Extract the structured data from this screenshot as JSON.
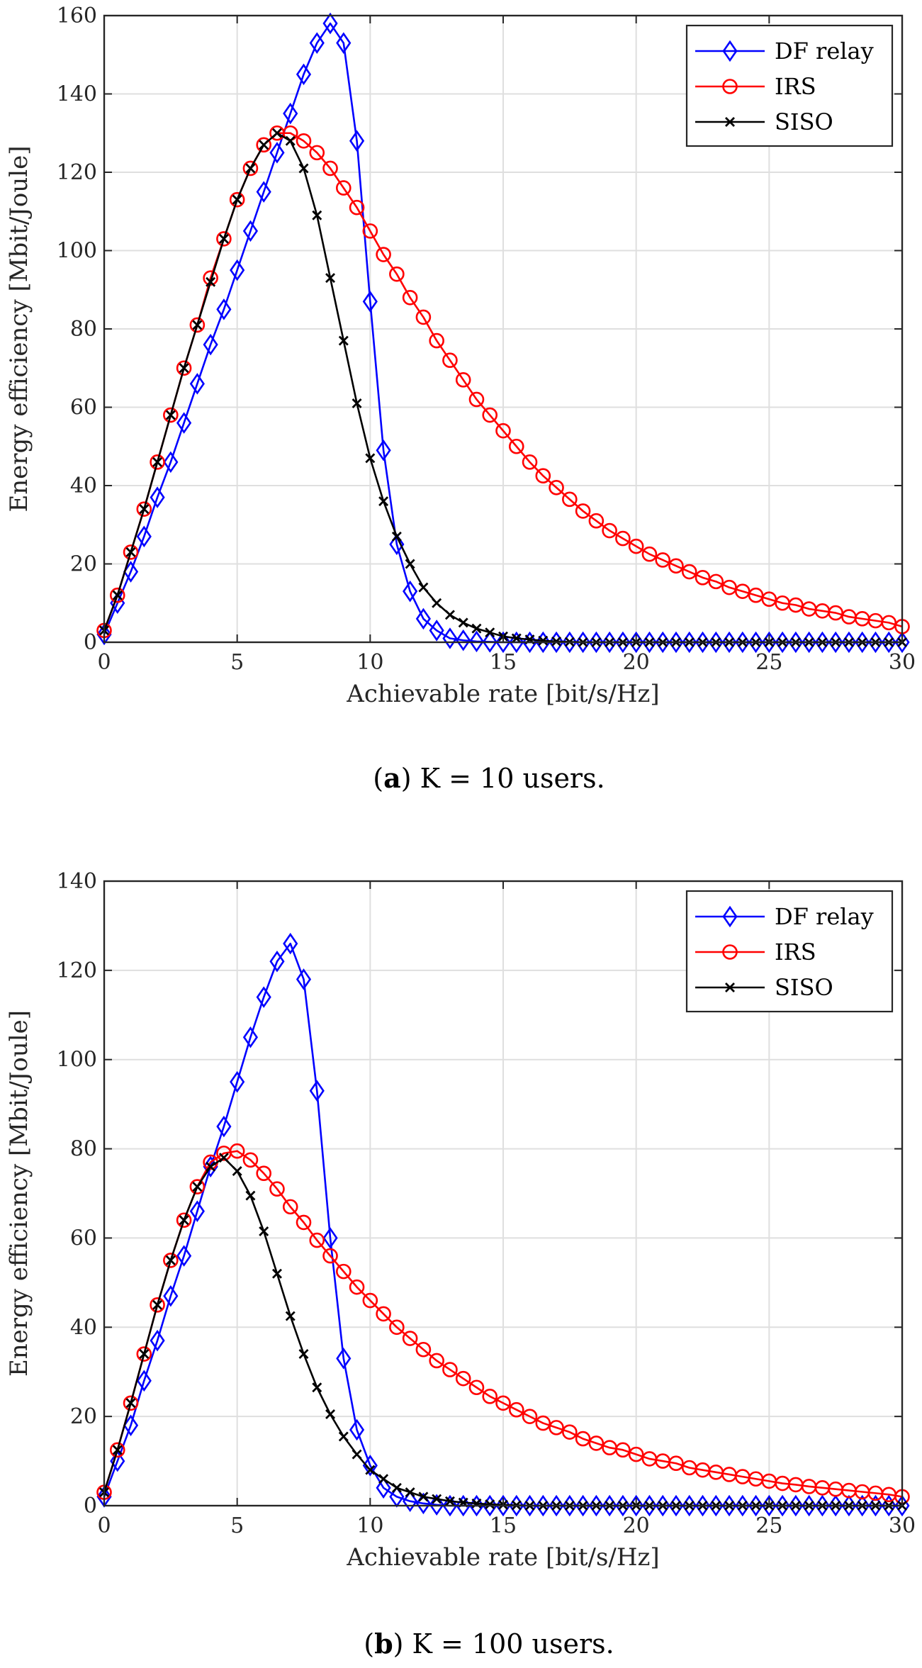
{
  "chart_data": [
    {
      "type": "line",
      "panel": "a",
      "caption": {
        "label": "a",
        "text": " K = 10 users."
      },
      "xlabel": "Achievable rate [bit/s/Hz]",
      "ylabel": "Energy efficiency [Mbit/Joule]",
      "xlim": [
        0,
        30
      ],
      "ylim": [
        0,
        160
      ],
      "xticks": [
        0,
        5,
        10,
        15,
        20,
        25,
        30
      ],
      "yticks": [
        0,
        20,
        40,
        60,
        80,
        100,
        120,
        140,
        160
      ],
      "grid": true,
      "legend_position": "top-right",
      "legend": [
        "DF relay",
        "IRS",
        "SISO"
      ],
      "colors": {
        "DF relay": "#0000ff",
        "IRS": "#ff0000",
        "SISO": "#000000"
      },
      "series": [
        {
          "name": "DF relay",
          "marker": "diamond",
          "x": [
            0,
            0.5,
            1,
            1.5,
            2,
            2.5,
            3,
            3.5,
            4,
            4.5,
            5,
            5.5,
            6,
            6.5,
            7,
            7.5,
            8,
            8.5,
            9,
            9.5,
            10,
            10.5,
            11,
            11.5,
            12,
            12.5,
            13,
            13.5,
            14,
            14.5,
            15,
            15.5,
            16,
            16.5,
            17,
            17.5,
            18,
            18.5,
            19,
            19.5,
            20,
            20.5,
            21,
            21.5,
            22,
            22.5,
            23,
            23.5,
            24,
            24.5,
            25,
            25.5,
            26,
            26.5,
            27,
            27.5,
            28,
            28.5,
            29,
            29.5,
            30
          ],
          "values": [
            2,
            10,
            18,
            27,
            37,
            46,
            56,
            66,
            76,
            85,
            95,
            105,
            115,
            125,
            135,
            145,
            153,
            158,
            153,
            128,
            87,
            49,
            25,
            13,
            6,
            3,
            1,
            0.5,
            0.2,
            0.1,
            0,
            0,
            0,
            0,
            0,
            0,
            0,
            0,
            0,
            0,
            0,
            0,
            0,
            0,
            0,
            0,
            0,
            0,
            0,
            0,
            0,
            0,
            0,
            0,
            0,
            0,
            0,
            0,
            0,
            0,
            0
          ]
        },
        {
          "name": "IRS",
          "marker": "circle",
          "x": [
            0,
            0.5,
            1,
            1.5,
            2,
            2.5,
            3,
            3.5,
            4,
            4.5,
            5,
            5.5,
            6,
            6.5,
            7,
            7.5,
            8,
            8.5,
            9,
            9.5,
            10,
            10.5,
            11,
            11.5,
            12,
            12.5,
            13,
            13.5,
            14,
            14.5,
            15,
            15.5,
            16,
            16.5,
            17,
            17.5,
            18,
            18.5,
            19,
            19.5,
            20,
            20.5,
            21,
            21.5,
            22,
            22.5,
            23,
            23.5,
            24,
            24.5,
            25,
            25.5,
            26,
            26.5,
            27,
            27.5,
            28,
            28.5,
            29,
            29.5,
            30
          ],
          "values": [
            3,
            12,
            23,
            34,
            46,
            58,
            70,
            81,
            93,
            103,
            113,
            121,
            127,
            130,
            130,
            128,
            125,
            121,
            116,
            111,
            105,
            99,
            94,
            88,
            83,
            77,
            72,
            67,
            62,
            58,
            54,
            50,
            46,
            42.5,
            39.5,
            36.5,
            33.5,
            31,
            28.5,
            26.5,
            24.5,
            22.5,
            21,
            19.5,
            18,
            16.5,
            15.5,
            14,
            13,
            12,
            11,
            10,
            9.5,
            8.5,
            8,
            7.5,
            6.5,
            6,
            5.5,
            5,
            4
          ]
        },
        {
          "name": "SISO",
          "marker": "x",
          "x": [
            0,
            0.5,
            1,
            1.5,
            2,
            2.5,
            3,
            3.5,
            4,
            4.5,
            5,
            5.5,
            6,
            6.5,
            7,
            7.5,
            8,
            8.5,
            9,
            9.5,
            10,
            10.5,
            11,
            11.5,
            12,
            12.5,
            13,
            13.5,
            14,
            14.5,
            15,
            15.5,
            16,
            16.5,
            17,
            17.5,
            18,
            18.5,
            19,
            19.5,
            20,
            20.5,
            21,
            21.5,
            22,
            22.5,
            23,
            23.5,
            24,
            24.5,
            25,
            25.5,
            26,
            26.5,
            27,
            27.5,
            28,
            28.5,
            29,
            29.5,
            30
          ],
          "values": [
            3,
            12,
            23,
            34,
            46,
            58,
            70,
            81,
            92,
            103,
            113,
            121,
            127,
            130,
            128,
            121,
            109,
            93,
            77,
            61,
            47,
            36,
            27,
            20,
            14,
            10,
            7,
            5,
            3.5,
            2.5,
            1.5,
            1,
            0.7,
            0.4,
            0.2,
            0.1,
            0,
            0,
            0,
            0,
            0,
            0,
            0,
            0,
            0,
            0,
            0,
            0,
            0,
            0,
            0,
            0,
            0,
            0,
            0,
            0,
            0,
            0,
            0,
            0,
            0
          ]
        }
      ]
    },
    {
      "type": "line",
      "panel": "b",
      "caption": {
        "label": "b",
        "text": " K = 100 users."
      },
      "xlabel": "Achievable rate [bit/s/Hz]",
      "ylabel": "Energy efficiency [Mbit/Joule]",
      "xlim": [
        0,
        30
      ],
      "ylim": [
        0,
        140
      ],
      "xticks": [
        0,
        5,
        10,
        15,
        20,
        25,
        30
      ],
      "yticks": [
        0,
        20,
        40,
        60,
        80,
        100,
        120,
        140
      ],
      "grid": true,
      "legend_position": "top-right",
      "legend": [
        "DF relay",
        "IRS",
        "SISO"
      ],
      "colors": {
        "DF relay": "#0000ff",
        "IRS": "#ff0000",
        "SISO": "#000000"
      },
      "series": [
        {
          "name": "DF relay",
          "marker": "diamond",
          "x": [
            0,
            0.5,
            1,
            1.5,
            2,
            2.5,
            3,
            3.5,
            4,
            4.5,
            5,
            5.5,
            6,
            6.5,
            7,
            7.5,
            8,
            8.5,
            9,
            9.5,
            10,
            10.5,
            11,
            11.5,
            12,
            12.5,
            13,
            13.5,
            14,
            14.5,
            15,
            15.5,
            16,
            16.5,
            17,
            17.5,
            18,
            18.5,
            19,
            19.5,
            20,
            20.5,
            21,
            21.5,
            22,
            22.5,
            23,
            23.5,
            24,
            24.5,
            25,
            25.5,
            26,
            26.5,
            27,
            27.5,
            28,
            28.5,
            29,
            29.5,
            30
          ],
          "values": [
            2,
            10,
            18,
            28,
            37,
            47,
            56,
            66,
            76,
            85,
            95,
            105,
            114,
            122,
            126,
            118,
            93,
            60,
            33,
            17,
            9,
            4,
            2,
            1,
            0.5,
            0.2,
            0,
            0,
            0,
            0,
            0,
            0,
            0,
            0,
            0,
            0,
            0,
            0,
            0,
            0,
            0,
            0,
            0,
            0,
            0,
            0,
            0,
            0,
            0,
            0,
            0,
            0,
            0,
            0,
            0,
            0,
            0,
            0,
            0,
            0,
            0
          ]
        },
        {
          "name": "IRS",
          "marker": "circle",
          "x": [
            0,
            0.5,
            1,
            1.5,
            2,
            2.5,
            3,
            3.5,
            4,
            4.5,
            5,
            5.5,
            6,
            6.5,
            7,
            7.5,
            8,
            8.5,
            9,
            9.5,
            10,
            10.5,
            11,
            11.5,
            12,
            12.5,
            13,
            13.5,
            14,
            14.5,
            15,
            15.5,
            16,
            16.5,
            17,
            17.5,
            18,
            18.5,
            19,
            19.5,
            20,
            20.5,
            21,
            21.5,
            22,
            22.5,
            23,
            23.5,
            24,
            24.5,
            25,
            25.5,
            26,
            26.5,
            27,
            27.5,
            28,
            28.5,
            29,
            29.5,
            30
          ],
          "values": [
            3,
            12.5,
            23,
            34,
            45,
            55,
            64,
            71.5,
            77,
            79,
            79.5,
            77.5,
            74.5,
            71,
            67,
            63.5,
            59.5,
            56,
            52.5,
            49,
            46,
            43,
            40,
            37.5,
            35,
            32.5,
            30.5,
            28.5,
            26.5,
            24.5,
            23,
            21.5,
            20,
            18.5,
            17.5,
            16.5,
            15,
            14,
            13,
            12.5,
            11.5,
            10.5,
            10,
            9.5,
            8.5,
            8,
            7.5,
            7,
            6.5,
            6,
            5.5,
            5,
            4.7,
            4.3,
            4,
            3.7,
            3.4,
            3.1,
            2.8,
            2.5,
            2
          ]
        },
        {
          "name": "SISO",
          "marker": "x",
          "x": [
            0,
            0.5,
            1,
            1.5,
            2,
            2.5,
            3,
            3.5,
            4,
            4.5,
            5,
            5.5,
            6,
            6.5,
            7,
            7.5,
            8,
            8.5,
            9,
            9.5,
            10,
            10.5,
            11,
            11.5,
            12,
            12.5,
            13,
            13.5,
            14,
            14.5,
            15,
            15.5,
            16,
            16.5,
            17,
            17.5,
            18,
            18.5,
            19,
            19.5,
            20,
            20.5,
            21,
            21.5,
            22,
            22.5,
            23,
            23.5,
            24,
            24.5,
            25,
            25.5,
            26,
            26.5,
            27,
            27.5,
            28,
            28.5,
            29,
            29.5,
            30
          ],
          "values": [
            3,
            12.5,
            23,
            34,
            45,
            55,
            64,
            71.5,
            76,
            78,
            75,
            69.5,
            61.5,
            52,
            42.5,
            34,
            26.5,
            20.5,
            15.5,
            11.5,
            8,
            6,
            4,
            3,
            2,
            1.5,
            1,
            0.7,
            0.5,
            0.3,
            0.2,
            0.1,
            0,
            0,
            0,
            0,
            0,
            0,
            0,
            0,
            0,
            0,
            0,
            0,
            0,
            0,
            0,
            0,
            0,
            0,
            0,
            0,
            0,
            0,
            0,
            0,
            0,
            0,
            0,
            0,
            0
          ]
        }
      ]
    }
  ]
}
